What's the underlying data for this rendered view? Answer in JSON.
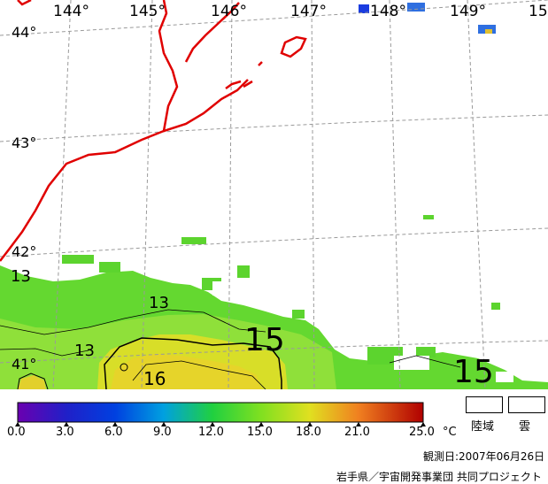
{
  "map": {
    "longitude_labels": [
      "144°",
      "145°",
      "146°",
      "147°",
      "148°",
      "149°",
      "15"
    ],
    "latitude_labels": [
      "44°",
      "43°",
      "42°",
      "41°"
    ],
    "contour_labels": [
      "13",
      "13",
      "13",
      "15",
      "15",
      "16"
    ]
  },
  "legend": {
    "ticks": [
      "0.0",
      "3.0",
      "6.0",
      "9.0",
      "12.0",
      "15.0",
      "18.0",
      "21.0",
      "25.0"
    ],
    "unit": "°C",
    "colorbar_min": 0.0,
    "colorbar_max": 25.0,
    "land_label": "陸域",
    "cloud_label": "雲"
  },
  "footer": {
    "observation_date": "観測日:2007年06月26日",
    "credit": "岩手県／宇宙開発事業団 共同プロジェクト"
  }
}
